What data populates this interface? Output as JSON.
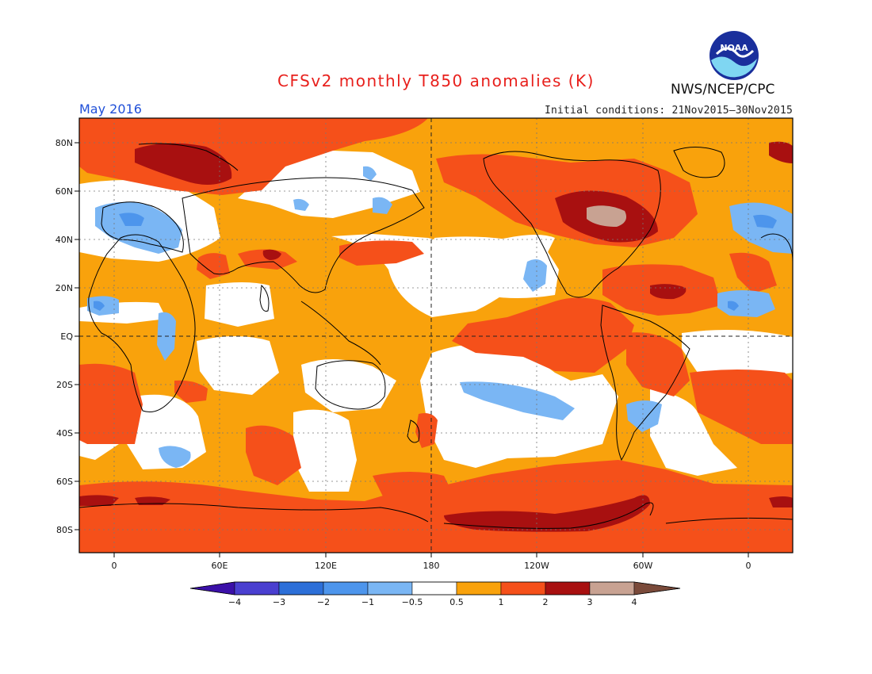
{
  "title": "CFSv2 monthly T850 anomalies (K)",
  "agency": "NWS/NCEP/CPC",
  "logo_text": "NOAA",
  "month": "May 2016",
  "initial_conditions": "Initial conditions: 21Nov2015—30Nov2015",
  "lat_labels": [
    "80N",
    "60N",
    "40N",
    "20N",
    "EQ",
    "20S",
    "40S",
    "60S",
    "80S"
  ],
  "lon_labels": [
    "0",
    "60E",
    "120E",
    "180",
    "120W",
    "60W",
    "0"
  ],
  "colorbar": {
    "labels": [
      "−4",
      "−3",
      "−2",
      "−1",
      "−0.5",
      "0.5",
      "1",
      "2",
      "3",
      "4"
    ],
    "colors": [
      "#3b10a8",
      "#4a3fd0",
      "#2c6fd8",
      "#4d95ec",
      "#7ab6f4",
      "#ffffff",
      "#f9a20c",
      "#f5501a",
      "#a81010",
      "#c8a292",
      "#7a4a3a"
    ]
  },
  "colors": {
    "title": "#e8201c",
    "month": "#1f4fd8",
    "weak_positive": "#f9a20c",
    "moderate_positive": "#f5501a",
    "strong_positive": "#a81010",
    "very_strong_positive": "#c8a292",
    "weak_negative": "#7ab6f4",
    "moderate_negative": "#4d95ec"
  }
}
